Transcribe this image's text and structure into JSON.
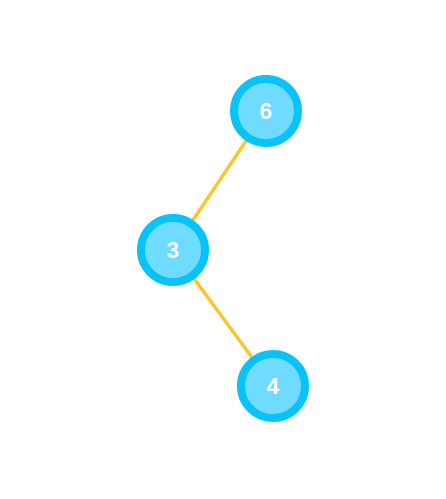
{
  "tree": {
    "colors": {
      "node_fill": "#6fdcff",
      "node_stroke": "#08c3f7",
      "edge": "#fbc52d",
      "label": "#ffffff"
    },
    "nodes": [
      {
        "id": "n6",
        "label": "6"
      },
      {
        "id": "n3",
        "label": "3"
      },
      {
        "id": "n4",
        "label": "4"
      }
    ],
    "edges": [
      {
        "from": "n6",
        "to": "n3"
      },
      {
        "from": "n3",
        "to": "n4"
      }
    ]
  }
}
